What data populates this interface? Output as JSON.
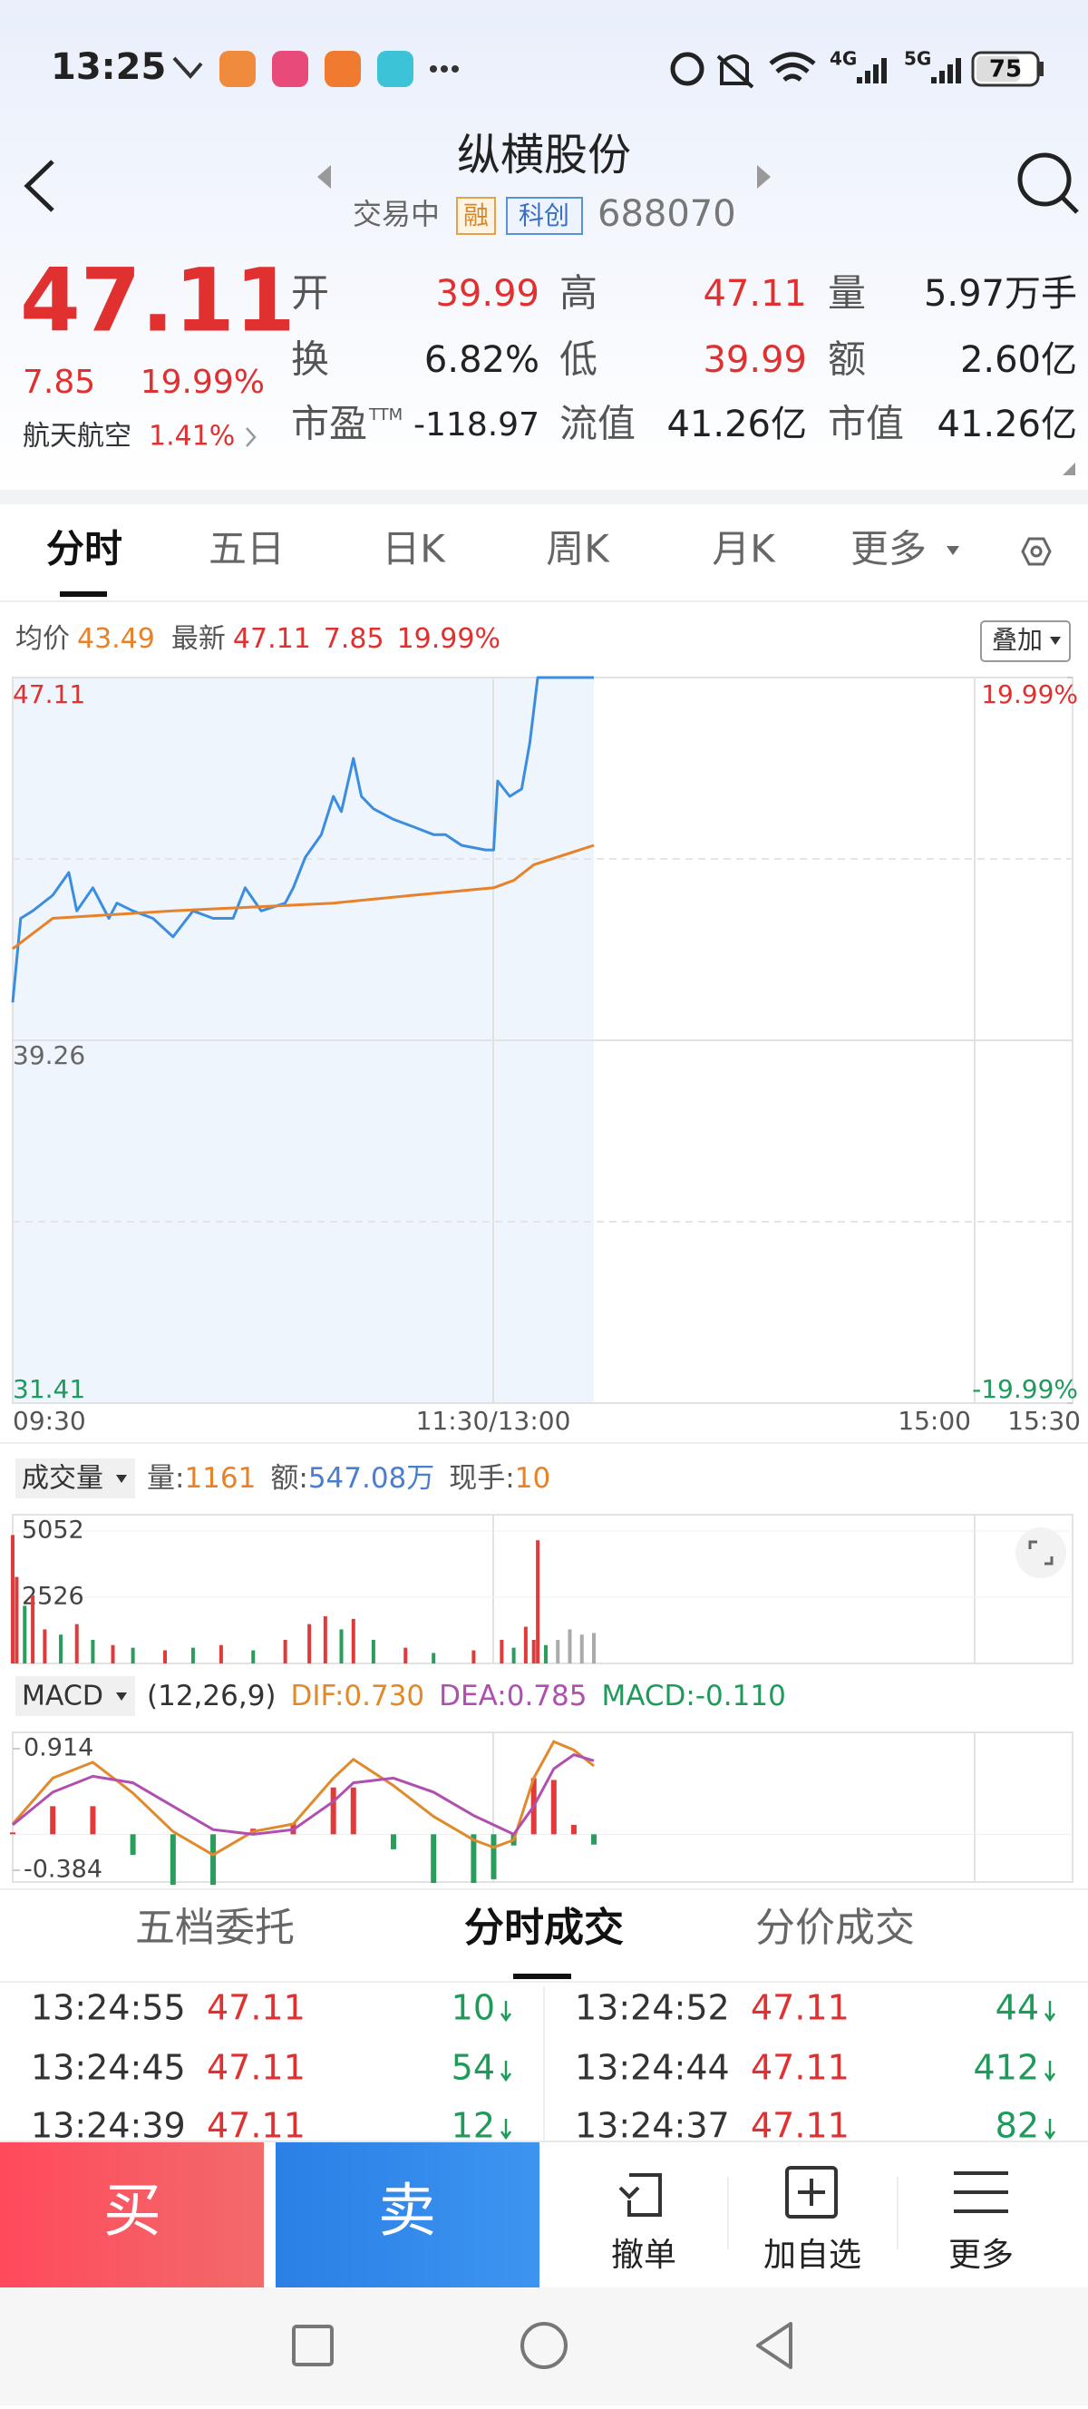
{
  "status_bar": {
    "time": "13:25",
    "network": [
      "4G",
      "5G"
    ],
    "battery": "75"
  },
  "header": {
    "title": "纵横股份",
    "status": "交易中",
    "badges": [
      "融",
      "科创"
    ],
    "code": "688070"
  },
  "quote": {
    "price": "47.11",
    "change": "7.85",
    "change_pct": "19.99%",
    "sector": "航天航空",
    "sector_pct": "1.41%",
    "stats": [
      [
        {
          "label": "开",
          "value": "39.99",
          "color": "#e03030"
        },
        {
          "label": "高",
          "value": "47.11",
          "color": "#e03030"
        },
        {
          "label": "量",
          "value": "5.97万手"
        }
      ],
      [
        {
          "label": "换",
          "value": "6.82%"
        },
        {
          "label": "低",
          "value": "39.99",
          "color": "#e03030"
        },
        {
          "label": "额",
          "value": "2.60亿"
        }
      ],
      [
        {
          "label": "市盈",
          "sup": "TTM",
          "value": "-118.97"
        },
        {
          "label": "流值",
          "value": "41.26亿"
        },
        {
          "label": "市值",
          "value": "41.26亿"
        }
      ]
    ]
  },
  "tabs": [
    "分时",
    "五日",
    "日K",
    "周K",
    "月K",
    "更多"
  ],
  "info": {
    "avg_label": "均价",
    "avg": "43.49",
    "latest_label": "最新",
    "latest": "47.11",
    "change": "7.85",
    "change_pct": "19.99%",
    "overlay": "叠加"
  },
  "chart_data": [
    {
      "type": "line",
      "ylim": [
        31.41,
        47.11
      ],
      "yticks": [
        47.11,
        39.26,
        31.41
      ],
      "y2lim": [
        -19.99,
        19.99
      ],
      "y2ticks": [
        {
          "value": 19.99,
          "label": "19.99%"
        },
        {
          "value": -19.99,
          "label": "-19.99%"
        }
      ],
      "xticks": [
        "09:30",
        "11:30/13:00",
        "15:00",
        "15:30"
      ],
      "series": [
        {
          "color": "#3b8de0",
          "x": [
            "09:30",
            "09:32",
            "09:35",
            "09:40",
            "09:44",
            "09:46",
            "09:50",
            "09:54",
            "09:56",
            "10:00",
            "10:05",
            "10:10",
            "10:15",
            "10:20",
            "10:25",
            "10:28",
            "10:32",
            "10:38",
            "10:40",
            "10:43",
            "10:47",
            "10:50",
            "10:52",
            "10:55",
            "10:57",
            "11:00",
            "11:05",
            "11:10",
            "11:15",
            "11:18",
            "11:22",
            "11:28",
            "11:30",
            "13:01",
            "13:04",
            "13:07",
            "13:09",
            "13:11",
            "13:25"
          ],
          "values": [
            40.08,
            41.9,
            42.06,
            42.4,
            42.89,
            42.06,
            42.56,
            41.9,
            42.23,
            42.06,
            41.9,
            41.5,
            42.06,
            41.9,
            41.9,
            42.56,
            42.06,
            42.23,
            42.56,
            43.22,
            43.71,
            44.54,
            44.21,
            45.36,
            44.54,
            44.27,
            44.04,
            43.88,
            43.71,
            43.71,
            43.48,
            43.38,
            43.38,
            44.87,
            44.54,
            44.7,
            45.69,
            47.11,
            47.11
          ]
        },
        {
          "color": "#e8822a",
          "x": [
            "09:30",
            "09:40",
            "10:10",
            "10:50",
            "11:10",
            "11:30",
            "13:05",
            "13:10",
            "13:25"
          ],
          "values": [
            41.24,
            41.9,
            42.06,
            42.23,
            42.4,
            42.56,
            42.72,
            43.06,
            43.48
          ]
        }
      ]
    },
    {
      "type": "bar",
      "indicator": "成交量",
      "readout": [
        {
          "label": "量:",
          "value": "1161",
          "color": "#e8822a"
        },
        {
          "label": "额:",
          "value": "547.08万",
          "color": "#4a7fd0"
        },
        {
          "label": "现手:",
          "value": "10",
          "color": "#e8822a"
        }
      ],
      "ylim": [
        0,
        5052
      ],
      "yticks": [
        2526,
        5052
      ],
      "x": [
        "09:30",
        "09:31",
        "09:33",
        "09:35",
        "09:38",
        "09:42",
        "09:46",
        "09:50",
        "09:55",
        "10:00",
        "10:08",
        "10:15",
        "10:22",
        "10:30",
        "10:38",
        "10:44",
        "10:48",
        "10:52",
        "10:55",
        "11:00",
        "11:08",
        "11:15",
        "11:25",
        "13:02",
        "13:05",
        "13:08",
        "13:10",
        "13:11",
        "13:13",
        "13:16",
        "13:19",
        "13:22",
        "13:25"
      ],
      "values": [
        4900,
        3300,
        2200,
        2600,
        1300,
        1100,
        1500,
        900,
        700,
        600,
        500,
        600,
        700,
        500,
        900,
        1500,
        1800,
        1300,
        1700,
        900,
        600,
        400,
        500,
        900,
        600,
        1400,
        900,
        4700,
        700,
        900,
        1300,
        1100,
        1161
      ],
      "colors": [
        "#e03a3a",
        "#e03a3a",
        "#2a9d5c",
        "#e03a3a",
        "#e03a3a",
        "#2a9d5c",
        "#e03a3a",
        "#2a9d5c",
        "#e03a3a",
        "#2a9d5c",
        "#e03a3a",
        "#2a9d5c",
        "#e03a3a",
        "#2a9d5c",
        "#e03a3a",
        "#e03a3a",
        "#e03a3a",
        "#2a9d5c",
        "#e03a3a",
        "#2a9d5c",
        "#e03a3a",
        "#2a9d5c",
        "#e03a3a",
        "#e03a3a",
        "#2a9d5c",
        "#e03a3a",
        "#e03a3a",
        "#e03a3a",
        "#2a9d5c",
        "#aaaaaa",
        "#aaaaaa",
        "#aaaaaa",
        "#aaaaaa"
      ]
    },
    {
      "type": "macd",
      "indicator": "MACD",
      "params": "(12,26,9)",
      "readout": [
        {
          "label": "DIF:",
          "value": "0.730",
          "color": "#e08a2c"
        },
        {
          "label": "DEA:",
          "value": "0.785",
          "color": "#b04fb0"
        },
        {
          "label": "MACD:",
          "value": "-0.110",
          "color": "#1f9a5a"
        }
      ],
      "ylim": [
        -0.384,
        0.914
      ],
      "yticks": [
        0.914,
        -0.384
      ],
      "x": [
        "09:30",
        "09:40",
        "09:50",
        "10:00",
        "10:10",
        "10:20",
        "10:30",
        "10:40",
        "10:50",
        "10:55",
        "11:05",
        "11:15",
        "11:25",
        "11:30",
        "13:05",
        "13:10",
        "13:15",
        "13:20",
        "13:25"
      ],
      "series": [
        {
          "color": "#e08a2c",
          "values": [
            0.11,
            0.6,
            0.77,
            0.44,
            0.03,
            -0.22,
            0.03,
            0.11,
            0.6,
            0.8,
            0.52,
            0.19,
            -0.06,
            -0.14,
            -0.06,
            0.6,
            0.99,
            0.9,
            0.73
          ]
        },
        {
          "color": "#b04fb0",
          "values": [
            0.1,
            0.45,
            0.62,
            0.55,
            0.3,
            0.05,
            0,
            0.05,
            0.35,
            0.55,
            0.6,
            0.45,
            0.2,
            0.1,
            0,
            0.3,
            0.7,
            0.85,
            0.785
          ]
        }
      ],
      "histogram": [
        0.02,
        0.3,
        0.3,
        -0.22,
        -0.54,
        -0.54,
        0.06,
        0.12,
        0.5,
        0.5,
        -0.16,
        -0.52,
        -0.52,
        -0.48,
        -0.12,
        0.6,
        0.58,
        0.1,
        -0.11
      ]
    }
  ],
  "trades": {
    "tabs": [
      "五档委托",
      "分时成交",
      "分价成交"
    ],
    "rows": [
      [
        "13:24:55",
        "47.11",
        "10",
        "13:24:52",
        "47.11",
        "44"
      ],
      [
        "13:24:45",
        "47.11",
        "54",
        "13:24:44",
        "47.11",
        "412"
      ],
      [
        "13:24:39",
        "47.11",
        "12",
        "13:24:37",
        "47.11",
        "82"
      ]
    ]
  },
  "actions": {
    "buy": "买",
    "sell": "卖",
    "items": [
      "撤单",
      "加自选",
      "更多"
    ]
  }
}
